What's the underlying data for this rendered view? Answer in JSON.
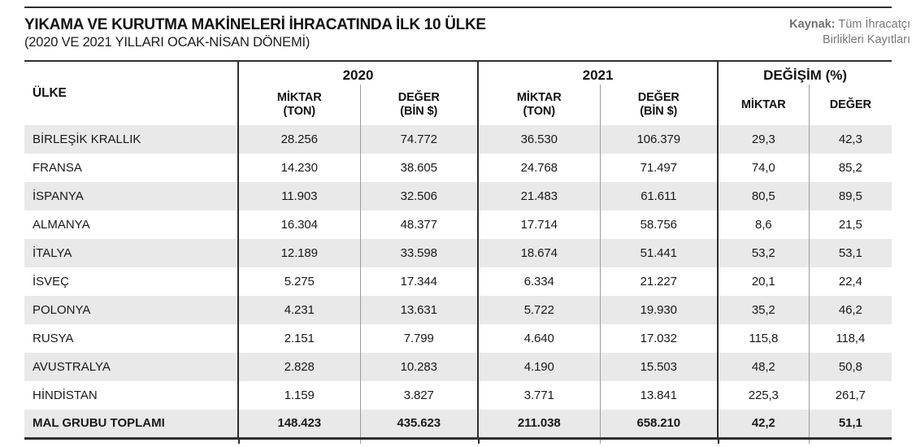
{
  "header": {
    "title": "YIKAMA VE KURUTMA MAKİNELERİ İHRACATINDA İLK 10 ÜLKE",
    "subtitle": "(2020 VE 2021 YILLARI OCAK-NİSAN DÖNEMİ)",
    "source_label": "Kaynak:",
    "source_line1": "Tüm İhracatçı",
    "source_line2": "Birlikleri Kayıtları"
  },
  "table": {
    "country_header": "ÜLKE",
    "groups": [
      {
        "label": "2020",
        "sub": [
          {
            "l1": "MİKTAR",
            "l2": "(TON)"
          },
          {
            "l1": "DEĞER",
            "l2": "(BİN $)"
          }
        ]
      },
      {
        "label": "2021",
        "sub": [
          {
            "l1": "MİKTAR",
            "l2": "(TON)"
          },
          {
            "l1": "DEĞER",
            "l2": "(BİN $)"
          }
        ]
      },
      {
        "label": "DEĞİŞİM (%)",
        "sub": [
          {
            "l1": "MİKTAR"
          },
          {
            "l1": "DEĞER"
          }
        ]
      }
    ],
    "rows": [
      {
        "country": "BİRLEŞİK KRALLIK",
        "values": [
          "28.256",
          "74.772",
          "36.530",
          "106.379",
          "29,3",
          "42,3"
        ]
      },
      {
        "country": "FRANSA",
        "values": [
          "14.230",
          "38.605",
          "24.768",
          "71.497",
          "74,0",
          "85,2"
        ]
      },
      {
        "country": "İSPANYA",
        "values": [
          "11.903",
          "32.506",
          "21.483",
          "61.611",
          "80,5",
          "89,5"
        ]
      },
      {
        "country": "ALMANYA",
        "values": [
          "16.304",
          "48.377",
          "17.714",
          "58.756",
          "8,6",
          "21,5"
        ]
      },
      {
        "country": "İTALYA",
        "values": [
          "12.189",
          "33.598",
          "18.674",
          "51.441",
          "53,2",
          "53,1"
        ]
      },
      {
        "country": "İSVEÇ",
        "values": [
          "5.275",
          "17.344",
          "6.334",
          "21.227",
          "20,1",
          "22,4"
        ]
      },
      {
        "country": "POLONYA",
        "values": [
          "4.231",
          "13.631",
          "5.722",
          "19.930",
          "35,2",
          "46,2"
        ]
      },
      {
        "country": "RUSYA",
        "values": [
          "2.151",
          "7.799",
          "4.640",
          "17.032",
          "115,8",
          "118,4"
        ]
      },
      {
        "country": "AVUSTRALYA",
        "values": [
          "2.828",
          "10.283",
          "4.190",
          "15.503",
          "48,2",
          "50,8"
        ]
      },
      {
        "country": "HİNDİSTAN",
        "values": [
          "1.159",
          "3.827",
          "3.771",
          "13.841",
          "225,3",
          "261,7"
        ]
      }
    ],
    "total": {
      "country": "MAL GRUBU TOPLAMI",
      "values": [
        "148.423",
        "435.623",
        "211.038",
        "658.210",
        "42,2",
        "51,1"
      ]
    }
  },
  "chart_data": {
    "type": "table",
    "title": "YIKAMA VE KURUTMA MAKİNELERİ İHRACATINDA İLK 10 ÜLKE",
    "subtitle": "(2020 VE 2021 YILLARI OCAK-NİSAN DÖNEMİ)",
    "source": "Kaynak: Tüm İhracatçı Birlikleri Kayıtları",
    "columns": [
      "ÜLKE",
      "2020 MİKTAR (TON)",
      "2020 DEĞER (BİN $)",
      "2021 MİKTAR (TON)",
      "2021 DEĞER (BİN $)",
      "DEĞİŞİM (%) MİKTAR",
      "DEĞİŞİM (%) DEĞER"
    ],
    "rows": [
      [
        "BİRLEŞİK KRALLIK",
        28256,
        74772,
        36530,
        106379,
        29.3,
        42.3
      ],
      [
        "FRANSA",
        14230,
        38605,
        24768,
        71497,
        74.0,
        85.2
      ],
      [
        "İSPANYA",
        11903,
        32506,
        21483,
        61611,
        80.5,
        89.5
      ],
      [
        "ALMANYA",
        16304,
        48377,
        17714,
        58756,
        8.6,
        21.5
      ],
      [
        "İTALYA",
        12189,
        33598,
        18674,
        51441,
        53.2,
        53.1
      ],
      [
        "İSVEÇ",
        5275,
        17344,
        6334,
        21227,
        20.1,
        22.4
      ],
      [
        "POLONYA",
        4231,
        13631,
        5722,
        19930,
        35.2,
        46.2
      ],
      [
        "RUSYA",
        2151,
        7799,
        4640,
        17032,
        115.8,
        118.4
      ],
      [
        "AVUSTRALYA",
        2828,
        10283,
        4190,
        15503,
        48.2,
        50.8
      ],
      [
        "HİNDİSTAN",
        1159,
        3827,
        3771,
        13841,
        225.3,
        261.7
      ]
    ],
    "total_row": [
      "MAL GRUBU TOPLAMI",
      148423,
      435623,
      211038,
      658210,
      42.2,
      51.1
    ]
  }
}
